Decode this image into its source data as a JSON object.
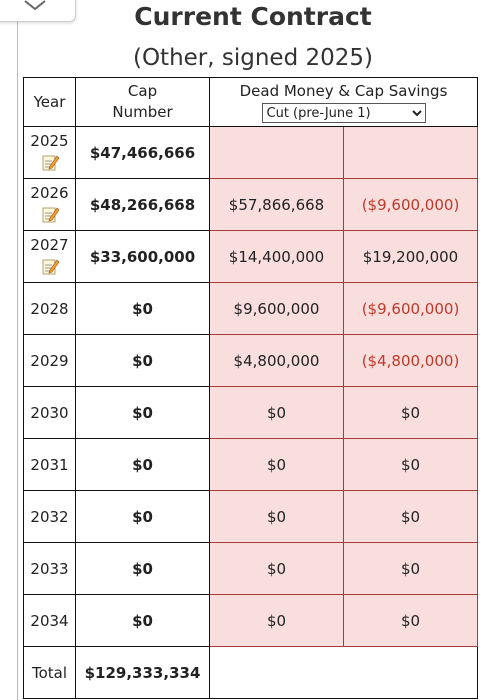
{
  "header": {
    "title": "Current Contract",
    "subtitle": "(Other, signed 2025)"
  },
  "table": {
    "columns": [
      "Year",
      "Cap Number",
      "Dead Money & Cap Savings"
    ],
    "option": "Cut (pre-June 1)",
    "rows": [
      {
        "year": "2025",
        "cap": "$47,466,666"
      },
      {
        "year": "2026",
        "cap": "$48,266,668",
        "dead": "$57,866,668",
        "savings": "($9,600,000)"
      },
      {
        "year": "2027",
        "cap": "$33,600,000",
        "dead": "$14,400,000",
        "savings": "$19,200,000"
      },
      {
        "year": "2028",
        "cap": "$0",
        "dead": "$9,600,000",
        "savings": "($9,600,000)"
      },
      {
        "year": "2029",
        "cap": "$0",
        "dead": "$4,800,000",
        "savings": "($4,800,000)"
      },
      {
        "year": "2030",
        "cap": "$0",
        "dead": "$0",
        "savings": "$0"
      },
      {
        "year": "2031",
        "cap": "$0",
        "dead": "$0",
        "savings": "$0"
      },
      {
        "year": "2032",
        "cap": "$0",
        "dead": "$0",
        "savings": "$0"
      },
      {
        "year": "2033",
        "cap": "$0",
        "dead": "$0",
        "savings": "$0"
      },
      {
        "year": "2034",
        "cap": "$0",
        "dead": "$0",
        "savings": "$0"
      }
    ],
    "total": {
      "label": "Total",
      "cap": "$129,333,334"
    }
  }
}
